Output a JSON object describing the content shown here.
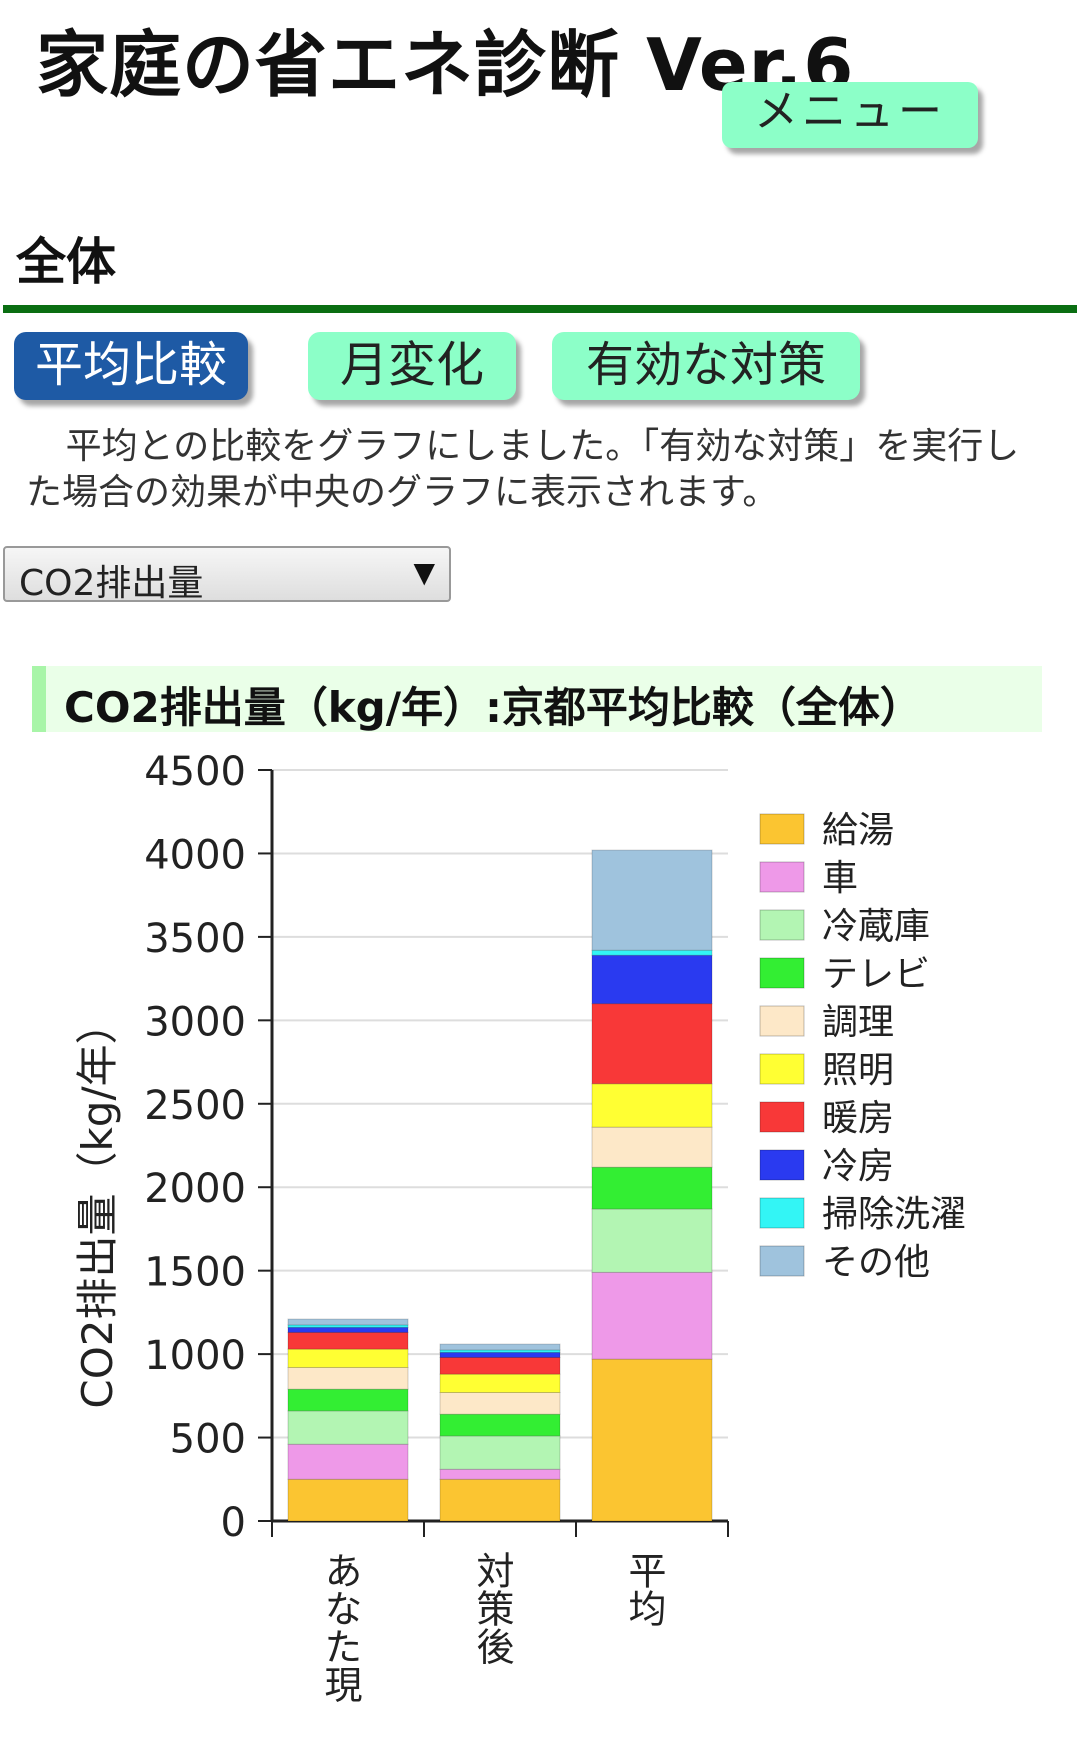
{
  "header": {
    "title": "家庭の省エネ診断 Ver.6",
    "menu_label": "メニュー"
  },
  "section": {
    "title": "全体"
  },
  "tabs": [
    {
      "label": "平均比較",
      "active": true
    },
    {
      "label": "月変化",
      "active": false
    },
    {
      "label": "有効な対策",
      "active": false
    }
  ],
  "description": "平均との比較をグラフにしました。「有効な対策」を実行した場合の効果が中央のグラフに表示されます。",
  "select": {
    "value": "CO2排出量"
  },
  "chart_heading": "CO2排出量（kg/年）:京都平均比較（全体）",
  "colors": {
    "primary_tab": "#1e5aa5",
    "secondary_button": "#8cffc8",
    "rule": "#0a6e12"
  },
  "chart_data": {
    "type": "bar",
    "stacked": true,
    "categories": [
      "あなた現",
      "対策後",
      "平均"
    ],
    "ylabel": "CO2排出量（kg/年）",
    "ylim": [
      0,
      4500
    ],
    "yticks": [
      0,
      500,
      1000,
      1500,
      2000,
      2500,
      3000,
      3500,
      4000,
      4500
    ],
    "grid": true,
    "legend_position": "right",
    "series": [
      {
        "name": "給湯",
        "color": "#fbc531",
        "values": [
          250,
          250,
          970
        ]
      },
      {
        "name": "車",
        "color": "#ee99e8",
        "values": [
          210,
          60,
          520
        ]
      },
      {
        "name": "冷蔵庫",
        "color": "#b3f5b3",
        "values": [
          200,
          200,
          380
        ]
      },
      {
        "name": "テレビ",
        "color": "#33ee33",
        "values": [
          130,
          130,
          250
        ]
      },
      {
        "name": "調理",
        "color": "#fde8c8",
        "values": [
          130,
          130,
          240
        ]
      },
      {
        "name": "照明",
        "color": "#ffff33",
        "values": [
          110,
          110,
          260
        ]
      },
      {
        "name": "暖房",
        "color": "#f83838",
        "values": [
          100,
          100,
          480
        ]
      },
      {
        "name": "冷房",
        "color": "#2a3af0",
        "values": [
          30,
          30,
          290
        ]
      },
      {
        "name": "掃除洗濯",
        "color": "#33f5f5",
        "values": [
          15,
          15,
          30
        ]
      },
      {
        "name": "その他",
        "color": "#9fc3dd",
        "values": [
          35,
          35,
          600
        ]
      }
    ]
  }
}
